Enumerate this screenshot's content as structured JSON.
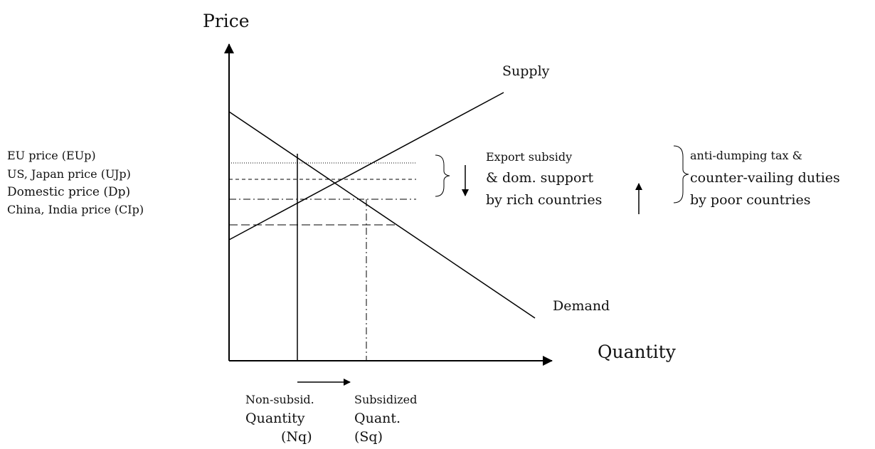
{
  "axes": {
    "y_label": "Price",
    "x_label": "Quantity"
  },
  "curves": {
    "supply": "Supply",
    "demand": "Demand"
  },
  "price_levels": [
    "EU price (EUp)",
    "US, Japan price (UJp)",
    "Domestic price (Dp)",
    "China, India price (CIp)"
  ],
  "rich_note": [
    "Export subsidy",
    "& dom. support",
    "by rich countries"
  ],
  "poor_note": [
    "anti-dumping tax &",
    "counter-vailing duties",
    "by poor countries"
  ],
  "quantities": {
    "non_subsidized": [
      "Non-subsid.",
      "Quantity",
      "(Nq)"
    ],
    "subsidized": [
      "Subsidized",
      "Quant.",
      "(Sq)"
    ]
  }
}
